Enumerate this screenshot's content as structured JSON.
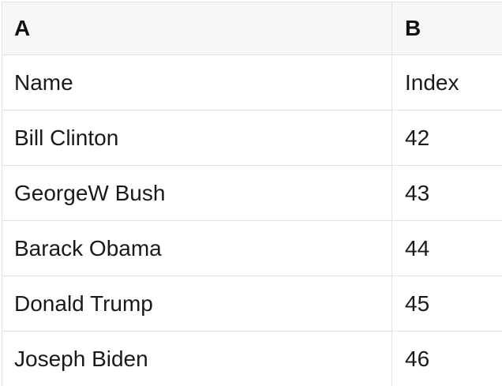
{
  "table": {
    "header": {
      "col_a": "A",
      "col_b": "B"
    },
    "rows": [
      {
        "a": "Name",
        "b": "Index"
      },
      {
        "a": "Bill Clinton",
        "b": 42
      },
      {
        "a": "GeorgeW Bush",
        "b": 43
      },
      {
        "a": "Barack Obama",
        "b": 44
      },
      {
        "a": "Donald Trump",
        "b": 45
      },
      {
        "a": "Joseph Biden",
        "b": 46
      }
    ]
  },
  "colors": {
    "header_background": "#f7f7f7",
    "border": "#e2e2e2",
    "text": "#1a1a1a"
  }
}
